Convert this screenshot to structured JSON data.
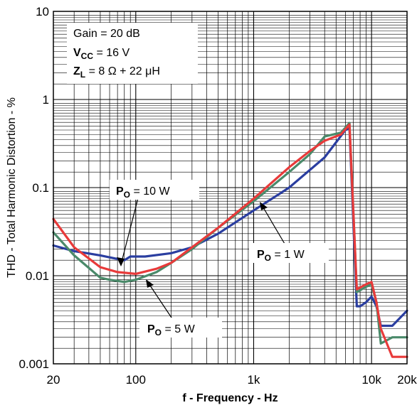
{
  "chart_data": {
    "type": "line",
    "xlabel": "f - Frequency - Hz",
    "ylabel": "THD - Total Harmonic Distortion - %",
    "xscale": "log",
    "yscale": "log",
    "xlim": [
      20,
      20000
    ],
    "ylim": [
      0.001,
      10
    ],
    "grid": true,
    "x_tick_labels": [
      {
        "value": 20,
        "label": "20"
      },
      {
        "value": 100,
        "label": "100"
      },
      {
        "value": 1000,
        "label": "1k"
      },
      {
        "value": 10000,
        "label": "10k"
      },
      {
        "value": 20000,
        "label": "20k"
      }
    ],
    "y_tick_labels": [
      {
        "value": 0.001,
        "label": "0.001"
      },
      {
        "value": 0.01,
        "label": "0.01"
      },
      {
        "value": 0.1,
        "label": "0.1"
      },
      {
        "value": 1,
        "label": "1"
      },
      {
        "value": 10,
        "label": "10"
      }
    ],
    "conditions": {
      "gain": "Gain = 20 dB",
      "vcc_sym": "V",
      "vcc_sub": "CC",
      "vcc_val": " = 16 V",
      "zl_sym": "Z",
      "zl_sub": "L",
      "zl_val": " = 8 Ω + 22 μH"
    },
    "series": [
      {
        "label_sym": "P",
        "label_sub": "O",
        "label_val": " = 1 W",
        "color": "#2a3ea0",
        "points": [
          [
            20,
            0.022
          ],
          [
            30,
            0.019
          ],
          [
            50,
            0.017
          ],
          [
            70,
            0.0155
          ],
          [
            80,
            0.015
          ],
          [
            90,
            0.0165
          ],
          [
            120,
            0.0165
          ],
          [
            200,
            0.018
          ],
          [
            300,
            0.021
          ],
          [
            500,
            0.03
          ],
          [
            1000,
            0.055
          ],
          [
            2000,
            0.1
          ],
          [
            4000,
            0.22
          ],
          [
            6000,
            0.45
          ],
          [
            6500,
            0.47
          ],
          [
            7500,
            0.0045
          ],
          [
            8000,
            0.0045
          ],
          [
            9000,
            0.005
          ],
          [
            10000,
            0.0058
          ],
          [
            11000,
            0.0045
          ],
          [
            12000,
            0.0027
          ],
          [
            15000,
            0.0027
          ],
          [
            20000,
            0.004
          ]
        ]
      },
      {
        "label_sym": "P",
        "label_sub": "O",
        "label_val": " = 5 W",
        "color": "#4a8a6a",
        "points": [
          [
            20,
            0.031
          ],
          [
            30,
            0.017
          ],
          [
            50,
            0.0095
          ],
          [
            60,
            0.009
          ],
          [
            80,
            0.0085
          ],
          [
            100,
            0.009
          ],
          [
            150,
            0.011
          ],
          [
            200,
            0.014
          ],
          [
            300,
            0.02
          ],
          [
            500,
            0.035
          ],
          [
            1000,
            0.07
          ],
          [
            2000,
            0.15
          ],
          [
            3000,
            0.24
          ],
          [
            4000,
            0.38
          ],
          [
            5500,
            0.42
          ],
          [
            6500,
            0.54
          ],
          [
            7500,
            0.0065
          ],
          [
            9000,
            0.0075
          ],
          [
            10000,
            0.008
          ],
          [
            11000,
            0.005
          ],
          [
            12000,
            0.0017
          ],
          [
            15000,
            0.002
          ],
          [
            20000,
            0.002
          ]
        ]
      },
      {
        "label_sym": "P",
        "label_sub": "O",
        "label_val": " = 10 W",
        "color": "#e83a3a",
        "points": [
          [
            20,
            0.044
          ],
          [
            30,
            0.021
          ],
          [
            50,
            0.0125
          ],
          [
            70,
            0.011
          ],
          [
            100,
            0.0105
          ],
          [
            150,
            0.012
          ],
          [
            200,
            0.014
          ],
          [
            300,
            0.021
          ],
          [
            500,
            0.035
          ],
          [
            1000,
            0.075
          ],
          [
            2000,
            0.17
          ],
          [
            3000,
            0.26
          ],
          [
            4000,
            0.34
          ],
          [
            5500,
            0.4
          ],
          [
            6500,
            0.52
          ],
          [
            7500,
            0.007
          ],
          [
            9000,
            0.008
          ],
          [
            10000,
            0.0085
          ],
          [
            11000,
            0.005
          ],
          [
            12000,
            0.0025
          ],
          [
            15000,
            0.0012
          ],
          [
            20000,
            0.0012
          ]
        ]
      }
    ]
  }
}
